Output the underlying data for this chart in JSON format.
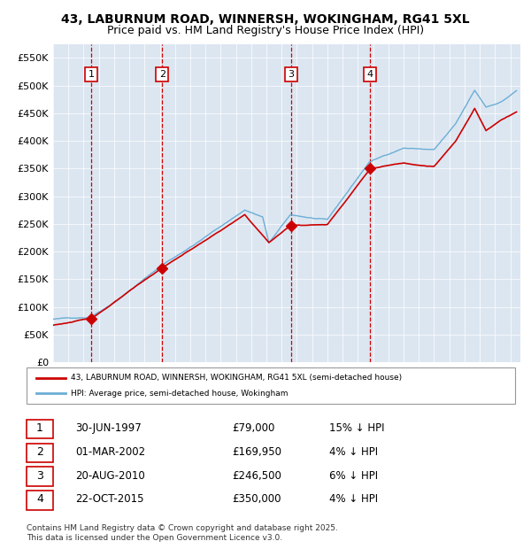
{
  "title_line1": "43, LABURNUM ROAD, WINNERSH, WOKINGHAM, RG41 5XL",
  "title_line2": "Price paid vs. HM Land Registry's House Price Index (HPI)",
  "ylabel": "",
  "ylim": [
    0,
    575000
  ],
  "yticks": [
    0,
    50000,
    100000,
    150000,
    200000,
    250000,
    300000,
    350000,
    400000,
    450000,
    500000,
    550000
  ],
  "ytick_labels": [
    "£0",
    "£50K",
    "£100K",
    "£150K",
    "£200K",
    "£250K",
    "£300K",
    "£350K",
    "£400K",
    "£450K",
    "£500K",
    "£550K"
  ],
  "bg_color": "#dce6f1",
  "plot_bg_color": "#dce6f1",
  "hpi_color": "#6baed6",
  "price_color": "#cc0000",
  "sale_marker_color": "#cc0000",
  "vline_color": "#cc0000",
  "vband_color": "#dce6f1",
  "sales": [
    {
      "date": "1997-06-30",
      "price": 79000,
      "label": "1"
    },
    {
      "date": "2002-03-01",
      "price": 169950,
      "label": "2"
    },
    {
      "date": "2010-08-20",
      "price": 246500,
      "label": "3"
    },
    {
      "date": "2015-10-22",
      "price": 350000,
      "label": "4"
    }
  ],
  "legend_price_label": "43, LABURNUM ROAD, WINNERSH, WOKINGHAM, RG41 5XL (semi-detached house)",
  "legend_hpi_label": "HPI: Average price, semi-detached house, Wokingham",
  "table_rows": [
    [
      "1",
      "30-JUN-1997",
      "£79,000",
      "15% ↓ HPI"
    ],
    [
      "2",
      "01-MAR-2002",
      "£169,950",
      "4% ↓ HPI"
    ],
    [
      "3",
      "20-AUG-2010",
      "£246,500",
      "6% ↓ HPI"
    ],
    [
      "4",
      "22-OCT-2015",
      "£350,000",
      "4% ↓ HPI"
    ]
  ],
  "footer": "Contains HM Land Registry data © Crown copyright and database right 2025.\nThis data is licensed under the Open Government Licence v3.0.",
  "xstart_year": 1995,
  "xend_year": 2025
}
